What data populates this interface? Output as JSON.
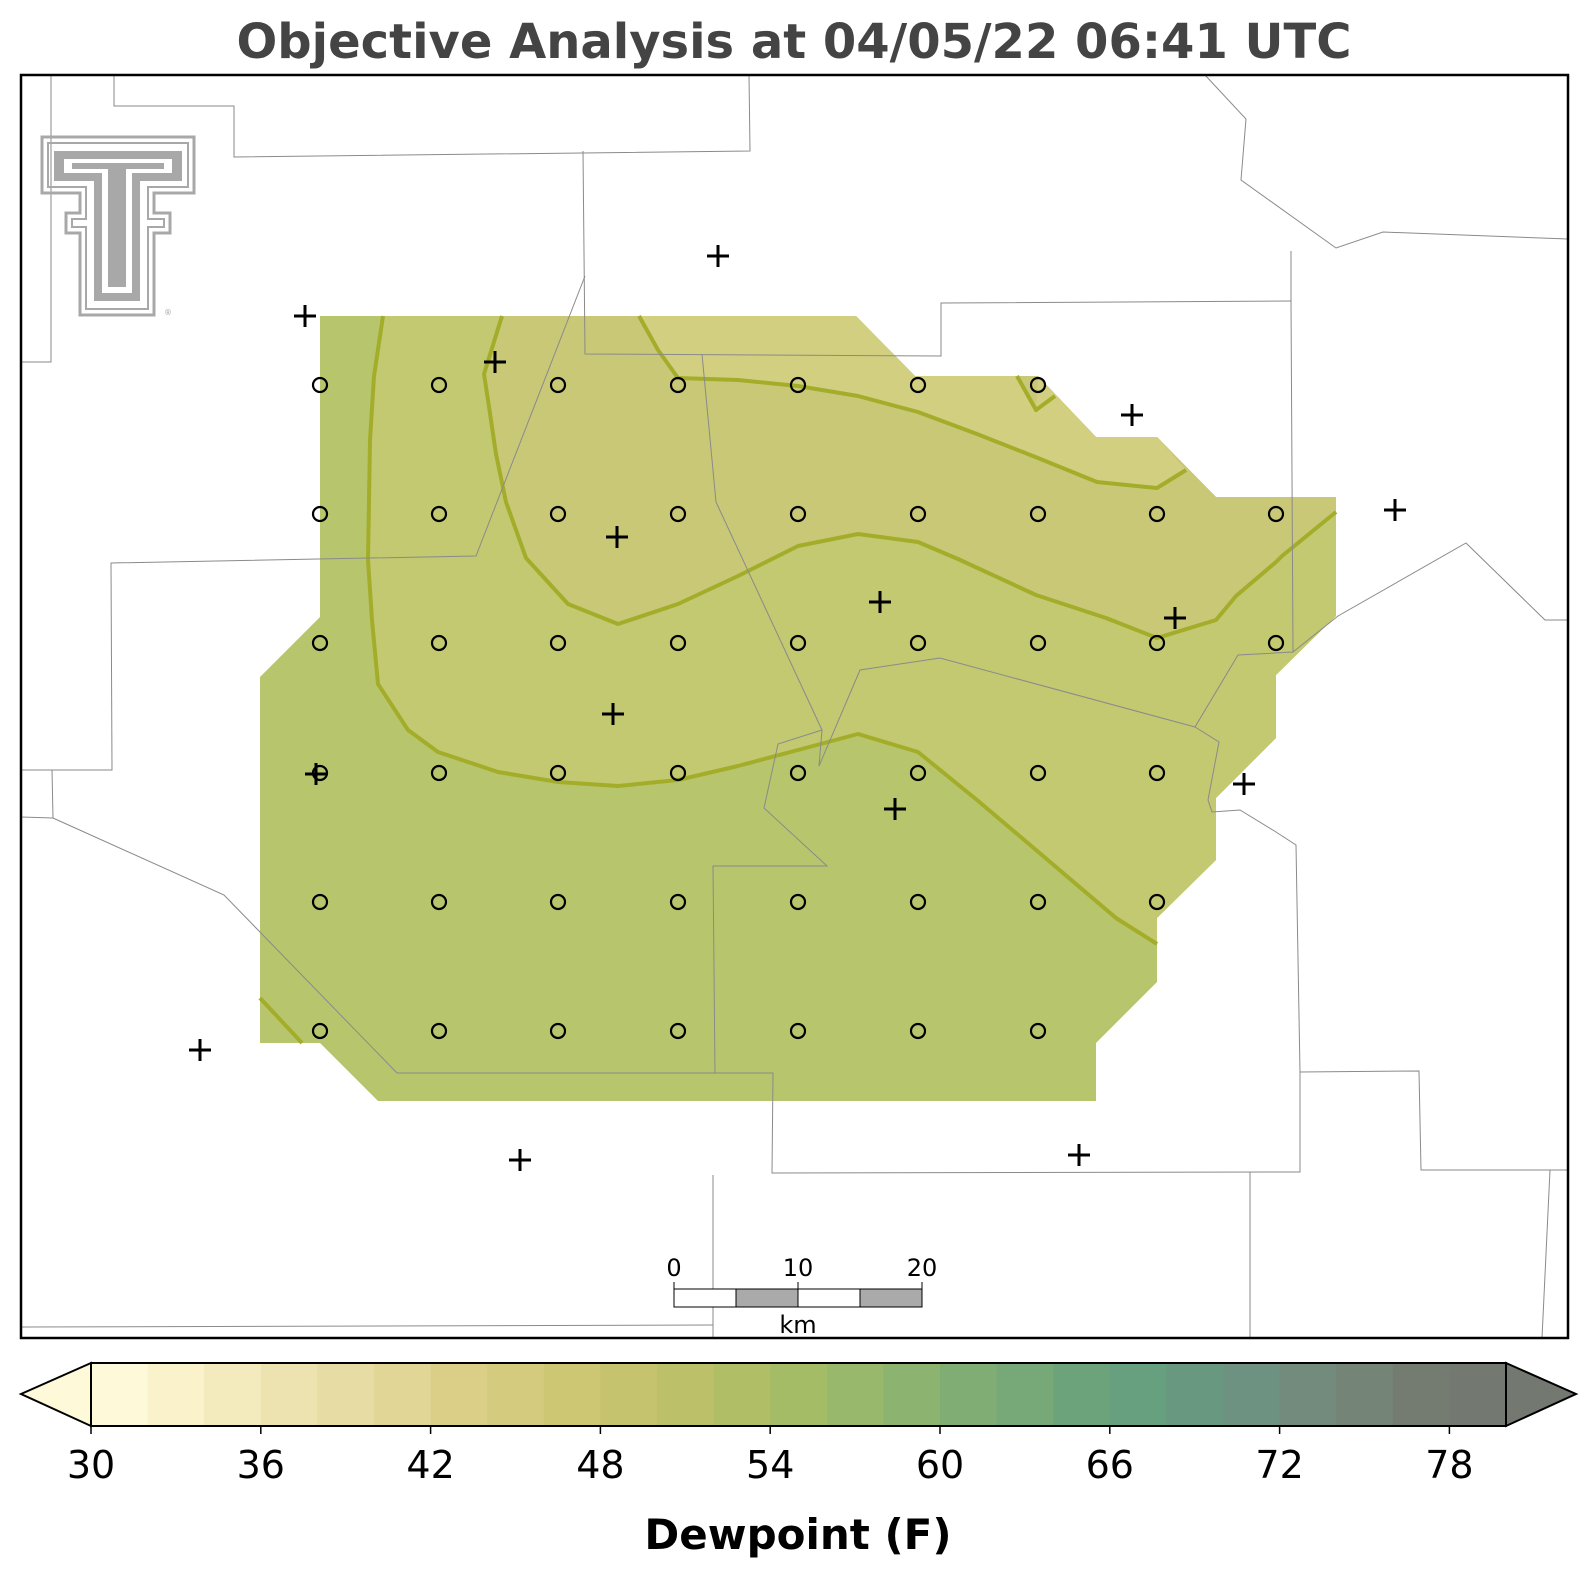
{
  "title": "Objective Analysis at 04/05/22 06:41 UTC",
  "colorbar": {
    "label": "Dewpoint (F)",
    "ticks": [
      "30",
      "36",
      "42",
      "48",
      "54",
      "60",
      "66",
      "72",
      "78"
    ],
    "min": 30,
    "max": 80,
    "step": 2,
    "colors": [
      "#fdf9d9",
      "#f9f2cb",
      "#f3ebbe",
      "#ede3b0",
      "#e7dca3",
      "#e1d695",
      "#dbcf88",
      "#d4cb7e",
      "#cdc774",
      "#c5c36e",
      "#bcc169",
      "#b0bf66",
      "#a4bc66",
      "#98b86b",
      "#8cb36f",
      "#80ad74",
      "#76a878",
      "#6ca37b",
      "#67a07e",
      "#699880",
      "#6e9282",
      "#738b7d",
      "#748477",
      "#747c72",
      "#737970"
    ],
    "under_color": "#fdf9d9",
    "over_color": "#737970"
  },
  "filled_levels": {
    "46-48": "#d3cf81",
    "48-50": "#c9c877",
    "50-52": "#c2c971",
    "52-54": "#b7c66c"
  },
  "scale_bar": {
    "labels": [
      "0",
      "10",
      "20"
    ],
    "unit": "km"
  },
  "logo": {
    "name": "Texas Tech Double T",
    "color": "#a8a8a8"
  },
  "markers": {
    "grid_point": "open circle",
    "station": "plus"
  }
}
